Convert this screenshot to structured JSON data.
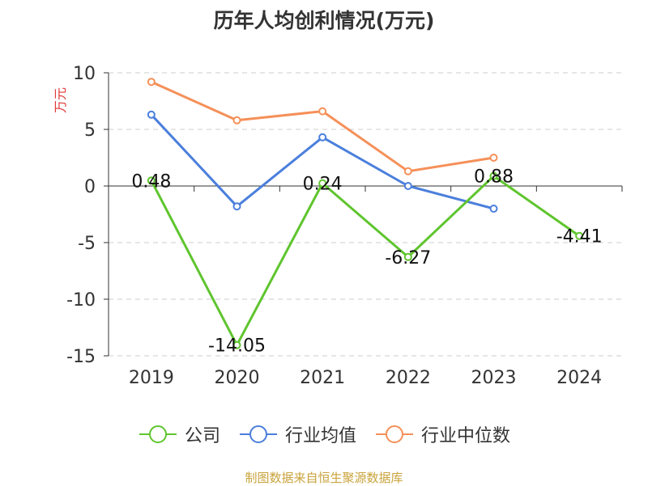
{
  "title": "历年人均创利情况(万元)",
  "source_note": "制图数据来自恒生聚源数据库",
  "colors": {
    "company": "#5fc52e",
    "industry_avg": "#4b7fdc",
    "industry_median": "#f59059",
    "grid": "#cccccc",
    "axis": "#333333",
    "unit_label": "#e03a3a"
  },
  "chart_data": {
    "type": "line",
    "title": "历年人均创利情况(万元)",
    "ylabel": "万元",
    "xlabel": "",
    "ylim": [
      -15,
      10
    ],
    "yticks": [
      10,
      5,
      0,
      -5,
      -10,
      -15
    ],
    "grid": true,
    "legend_position": "bottom",
    "categories": [
      "2019",
      "2020",
      "2021",
      "2022",
      "2023",
      "2024"
    ],
    "series": [
      {
        "name": "公司",
        "values": [
          0.48,
          -14.05,
          0.24,
          -6.27,
          0.88,
          -4.41
        ],
        "labels": [
          "0.48",
          "-14.05",
          "0.24",
          "-6.27",
          "0.88",
          "-4.41"
        ],
        "color": "#5fc52e"
      },
      {
        "name": "行业均值",
        "values": [
          6.3,
          -1.8,
          4.3,
          0.0,
          -2.0,
          null
        ],
        "color": "#4b7fdc"
      },
      {
        "name": "行业中位数",
        "values": [
          9.2,
          5.8,
          6.6,
          1.3,
          2.5,
          null
        ],
        "color": "#f59059"
      }
    ]
  }
}
